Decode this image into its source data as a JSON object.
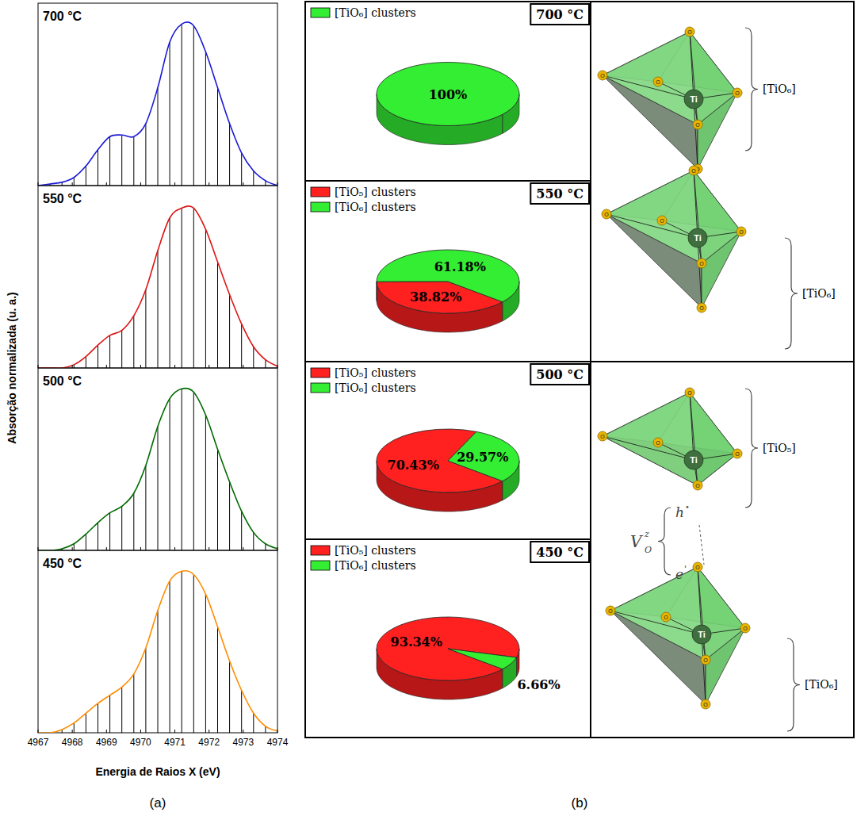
{
  "figure": {
    "ylabel": "Absorção normalizada (u. a.)",
    "xlabel": "Energia de Raios X (eV)",
    "panel_labels": [
      "(a)",
      "(b)"
    ]
  },
  "chart_data": [
    {
      "type": "line",
      "title": "700 °C",
      "marker": "stem",
      "tick_labels": false,
      "x": [
        4967,
        4967.35,
        4967.7,
        4968.05,
        4968.4,
        4968.75,
        4969.1,
        4969.45,
        4969.8,
        4970.15,
        4970.5,
        4970.85,
        4971.2,
        4971.55,
        4971.9,
        4972.25,
        4972.6,
        4972.95,
        4973.3,
        4973.65,
        4974
      ],
      "series": [
        {
          "color": "#1a1ad6",
          "values": [
            0,
            0.01,
            0.02,
            0.05,
            0.12,
            0.22,
            0.3,
            0.31,
            0.3,
            0.38,
            0.6,
            0.88,
            0.99,
            0.98,
            0.82,
            0.6,
            0.38,
            0.2,
            0.09,
            0.03,
            0
          ]
        }
      ],
      "xlim": [
        4967,
        4974
      ],
      "xticks": [
        4967,
        4968,
        4969,
        4970,
        4971,
        4972,
        4973,
        4974
      ],
      "ylim": [
        0,
        1.05
      ]
    },
    {
      "type": "line",
      "title": "550 °C",
      "marker": "stem",
      "tick_labels": false,
      "x": [
        4967,
        4967.35,
        4967.7,
        4968.05,
        4968.4,
        4968.75,
        4969.1,
        4969.45,
        4969.8,
        4970.15,
        4970.5,
        4970.85,
        4971.2,
        4971.55,
        4971.9,
        4972.25,
        4972.6,
        4972.95,
        4973.3,
        4973.65,
        4974
      ],
      "series": [
        {
          "color": "#dd1515",
          "values": [
            0,
            0,
            0,
            0.02,
            0.07,
            0.14,
            0.2,
            0.23,
            0.32,
            0.48,
            0.72,
            0.92,
            0.98,
            0.98,
            0.85,
            0.65,
            0.45,
            0.27,
            0.13,
            0.05,
            0.01
          ]
        }
      ],
      "xlim": [
        4967,
        4974
      ],
      "xticks": [
        4967,
        4968,
        4969,
        4970,
        4971,
        4972,
        4973,
        4974
      ],
      "ylim": [
        0,
        1.05
      ]
    },
    {
      "type": "line",
      "title": "500 °C",
      "marker": "stem",
      "tick_labels": false,
      "x": [
        4967,
        4967.35,
        4967.7,
        4968.05,
        4968.4,
        4968.75,
        4969.1,
        4969.45,
        4969.8,
        4970.15,
        4970.5,
        4970.85,
        4971.2,
        4971.55,
        4971.9,
        4972.25,
        4972.6,
        4972.95,
        4973.3,
        4973.65,
        4974
      ],
      "series": [
        {
          "color": "#006a00",
          "values": [
            0,
            0,
            0.01,
            0.04,
            0.1,
            0.17,
            0.23,
            0.27,
            0.35,
            0.52,
            0.76,
            0.93,
            0.99,
            0.97,
            0.83,
            0.62,
            0.42,
            0.24,
            0.11,
            0.04,
            0.01
          ]
        }
      ],
      "xlim": [
        4967,
        4974
      ],
      "xticks": [
        4967,
        4968,
        4969,
        4970,
        4971,
        4972,
        4973,
        4974
      ],
      "ylim": [
        0,
        1.05
      ]
    },
    {
      "type": "line",
      "title": "450 °C",
      "marker": "stem",
      "tick_labels": "x",
      "x": [
        4967,
        4967.35,
        4967.7,
        4968.05,
        4968.4,
        4968.75,
        4969.1,
        4969.45,
        4969.8,
        4970.15,
        4970.5,
        4970.85,
        4971.2,
        4971.55,
        4971.9,
        4972.25,
        4972.6,
        4972.95,
        4973.3,
        4973.65,
        4974
      ],
      "series": [
        {
          "color": "#ff8c00",
          "values": [
            0,
            0,
            0.02,
            0.06,
            0.12,
            0.18,
            0.23,
            0.28,
            0.36,
            0.52,
            0.75,
            0.93,
            0.99,
            0.97,
            0.85,
            0.65,
            0.44,
            0.26,
            0.12,
            0.04,
            0.01
          ]
        }
      ],
      "xlim": [
        4967,
        4974
      ],
      "xticks": [
        4967,
        4968,
        4969,
        4970,
        4971,
        4972,
        4973,
        4974
      ],
      "ylim": [
        0,
        1.05
      ]
    },
    {
      "type": "pie",
      "title": "700 °C",
      "categories": [
        "[TiO₆] clusters"
      ],
      "values": [
        100
      ],
      "value_labels": [
        "100%"
      ],
      "colors": [
        "#33ee33"
      ],
      "data_labels": true,
      "legend": "top-left"
    },
    {
      "type": "pie",
      "title": "550 °C",
      "categories": [
        "[TiO₅] clusters",
        "[TiO₆] clusters"
      ],
      "values": [
        38.82,
        61.18
      ],
      "value_labels": [
        "38.82%",
        "61.18%"
      ],
      "colors": [
        "#ff2020",
        "#33ee33"
      ],
      "data_labels": true,
      "legend": "top-left"
    },
    {
      "type": "pie",
      "title": "500 °C",
      "categories": [
        "[TiO₅] clusters",
        "[TiO₆] clusters"
      ],
      "values": [
        70.43,
        29.57
      ],
      "value_labels": [
        "70.43%",
        "29.57%"
      ],
      "colors": [
        "#ff2020",
        "#33ee33"
      ],
      "data_labels": true,
      "legend": "top-left"
    },
    {
      "type": "pie",
      "title": "450 °C",
      "categories": [
        "[TiO₅] clusters",
        "[TiO₆] clusters"
      ],
      "values": [
        93.34,
        6.66
      ],
      "value_labels": [
        "93.34%",
        "6.66%"
      ],
      "colors": [
        "#ff2020",
        "#33ee33"
      ],
      "data_labels": true,
      "legend": "top-left"
    }
  ],
  "diagrams": [
    {
      "cluster_labels": [
        "[TiO₆]",
        "[TiO₆]"
      ],
      "center_atom": "Ti",
      "oxygen_atom": "O"
    },
    {
      "cluster_labels": [
        "[TiO₅]",
        "[TiO₆]"
      ],
      "center_atom": "Ti",
      "oxygen_atom": "O",
      "vacancy": {
        "symbol": "V",
        "subscript": "O",
        "superscript": "z"
      },
      "hole": {
        "symbol": "h",
        "superscript": "•"
      },
      "electron": {
        "symbol": "e",
        "superscript": "'"
      }
    }
  ]
}
